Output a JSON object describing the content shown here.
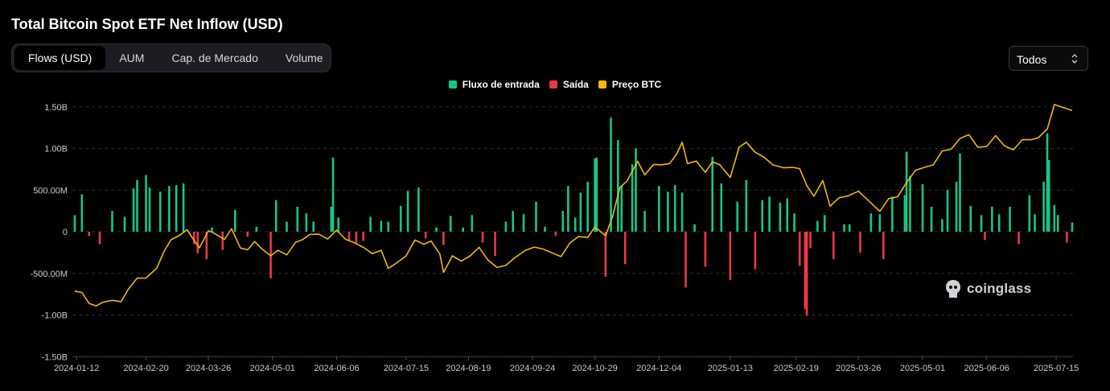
{
  "title": "Total Bitcoin Spot ETF Net Inflow (USD)",
  "tabs": [
    {
      "label": "Flows (USD)",
      "active": true
    },
    {
      "label": "AUM",
      "active": false
    },
    {
      "label": "Cap. de Mercado",
      "active": false
    },
    {
      "label": "Volume",
      "active": false
    }
  ],
  "range_select": {
    "value": "Todos"
  },
  "watermark": "coinglass",
  "colors": {
    "inflow": "#16c784",
    "outflow": "#ea3943",
    "price": "#f0b90b",
    "background": "#000000",
    "grid": "#2a2d33"
  },
  "chart_data": {
    "type": "bar",
    "legend": [
      {
        "name": "Fluxo de entrada",
        "color": "#16c784"
      },
      {
        "name": "Saída",
        "color": "#ea3943"
      },
      {
        "name": "Preço BTC",
        "color": "#f0b90b"
      }
    ],
    "legend_position": "top-center",
    "grid": true,
    "x_tick_labels": [
      "2024-01-12",
      "2024-02-20",
      "2024-03-26",
      "2024-05-01",
      "2024-06-06",
      "2024-07-15",
      "2024-08-19",
      "2024-09-24",
      "2024-10-29",
      "2024-12-04",
      "2025-01-13",
      "2025-02-19",
      "2025-03-26",
      "2025-05-01",
      "2025-06-06",
      "2025-07-15"
    ],
    "y_tick_labels": [
      "1.50B",
      "1.00B",
      "500.00M",
      "0",
      "-500.00M",
      "-1.00B",
      "-1.50B"
    ],
    "ylim": [
      -1.5,
      1.5
    ],
    "y_unit": "B USD",
    "x_range": [
      "2024-01-11",
      "2025-07-24"
    ],
    "series": [
      {
        "name": "Fluxo de entrada / Saída",
        "kind": "bar",
        "x": [
          "2024-01-11",
          "2024-01-15",
          "2024-01-19",
          "2024-01-25",
          "2024-02-01",
          "2024-02-08",
          "2024-02-13",
          "2024-02-15",
          "2024-02-20",
          "2024-02-22",
          "2024-02-28",
          "2024-03-04",
          "2024-03-08",
          "2024-03-12",
          "2024-03-18",
          "2024-03-20",
          "2024-03-25",
          "2024-03-28",
          "2024-04-03",
          "2024-04-10",
          "2024-04-17",
          "2024-04-22",
          "2024-04-30",
          "2024-05-03",
          "2024-05-09",
          "2024-05-15",
          "2024-05-20",
          "2024-05-24",
          "2024-06-03",
          "2024-06-04",
          "2024-06-07",
          "2024-06-13",
          "2024-06-17",
          "2024-06-21",
          "2024-06-25",
          "2024-07-01",
          "2024-07-05",
          "2024-07-12",
          "2024-07-16",
          "2024-07-22",
          "2024-07-26",
          "2024-08-01",
          "2024-08-05",
          "2024-08-09",
          "2024-08-16",
          "2024-08-21",
          "2024-08-27",
          "2024-09-03",
          "2024-09-09",
          "2024-09-13",
          "2024-09-19",
          "2024-09-26",
          "2024-10-01",
          "2024-10-07",
          "2024-10-11",
          "2024-10-14",
          "2024-10-18",
          "2024-10-21",
          "2024-10-25",
          "2024-10-29",
          "2024-10-30",
          "2024-11-04",
          "2024-11-07",
          "2024-11-11",
          "2024-11-13",
          "2024-11-15",
          "2024-11-19",
          "2024-11-21",
          "2024-11-26",
          "2024-12-04",
          "2024-12-09",
          "2024-12-13",
          "2024-12-17",
          "2024-12-19",
          "2024-12-24",
          "2024-12-30",
          "2025-01-03",
          "2025-01-08",
          "2025-01-13",
          "2025-01-17",
          "2025-01-22",
          "2025-01-27",
          "2025-01-31",
          "2025-02-04",
          "2025-02-10",
          "2025-02-14",
          "2025-02-18",
          "2025-02-21",
          "2025-02-24",
          "2025-02-25",
          "2025-02-27",
          "2025-03-03",
          "2025-03-07",
          "2025-03-12",
          "2025-03-18",
          "2025-03-21",
          "2025-03-27",
          "2025-04-02",
          "2025-04-07",
          "2025-04-09",
          "2025-04-14",
          "2025-04-21",
          "2025-04-22",
          "2025-04-24",
          "2025-05-01",
          "2025-05-06",
          "2025-05-12",
          "2025-05-15",
          "2025-05-20",
          "2025-05-22",
          "2025-05-28",
          "2025-06-03",
          "2025-06-05",
          "2025-06-09",
          "2025-06-13",
          "2025-06-19",
          "2025-06-24",
          "2025-06-30",
          "2025-07-03",
          "2025-07-08",
          "2025-07-10",
          "2025-07-11",
          "2025-07-14",
          "2025-07-16",
          "2025-07-21",
          "2025-07-24"
        ],
        "values": [
          0.2,
          0.45,
          -0.05,
          -0.15,
          0.25,
          0.18,
          0.52,
          0.62,
          0.68,
          0.53,
          0.48,
          0.55,
          0.56,
          0.58,
          -0.15,
          -0.26,
          -0.33,
          0.05,
          -0.22,
          0.26,
          -0.06,
          0.06,
          -0.56,
          0.38,
          0.12,
          0.3,
          0.22,
          0.12,
          0.3,
          0.89,
          0.17,
          -0.1,
          -0.15,
          -0.11,
          0.18,
          0.13,
          0.12,
          0.31,
          0.49,
          0.53,
          -0.08,
          0.05,
          -0.16,
          0.19,
          0.05,
          0.2,
          -0.13,
          -0.29,
          0.12,
          0.25,
          0.21,
          0.36,
          0.06,
          -0.05,
          0.25,
          0.55,
          0.17,
          0.47,
          0.6,
          0.88,
          0.89,
          -0.54,
          1.37,
          1.1,
          0.55,
          -0.39,
          0.81,
          1.0,
          0.25,
          0.55,
          0.48,
          0.56,
          0.47,
          -0.67,
          0.09,
          -0.42,
          0.9,
          0.58,
          -0.58,
          0.36,
          0.62,
          -0.45,
          0.38,
          0.42,
          0.35,
          0.4,
          0.22,
          -0.41,
          -0.93,
          -1.01,
          -0.2,
          0.13,
          0.2,
          -0.33,
          0.09,
          0.09,
          -0.25,
          0.22,
          0.21,
          -0.33,
          0.42,
          0.44,
          0.96,
          0.67,
          0.57,
          0.3,
          0.15,
          0.5,
          0.6,
          0.94,
          0.31,
          0.2,
          -0.1,
          0.3,
          0.21,
          0.3,
          -0.15,
          0.44,
          0.21,
          0.6,
          1.18,
          0.86,
          0.32,
          0.2,
          -0.13,
          0.11
        ]
      },
      {
        "name": "Preço BTC",
        "kind": "line",
        "x": [
          "2024-01-11",
          "2024-01-15",
          "2024-01-19",
          "2024-01-23",
          "2024-01-27",
          "2024-02-01",
          "2024-02-06",
          "2024-02-10",
          "2024-02-15",
          "2024-02-20",
          "2024-02-26",
          "2024-03-01",
          "2024-03-05",
          "2024-03-10",
          "2024-03-14",
          "2024-03-18",
          "2024-03-21",
          "2024-03-26",
          "2024-03-29",
          "2024-04-04",
          "2024-04-08",
          "2024-04-13",
          "2024-04-17",
          "2024-04-21",
          "2024-04-25",
          "2024-04-30",
          "2024-05-04",
          "2024-05-09",
          "2024-05-14",
          "2024-05-18",
          "2024-05-22",
          "2024-05-27",
          "2024-06-01",
          "2024-06-06",
          "2024-06-11",
          "2024-06-16",
          "2024-06-21",
          "2024-06-26",
          "2024-07-01",
          "2024-07-05",
          "2024-07-10",
          "2024-07-15",
          "2024-07-20",
          "2024-07-25",
          "2024-07-29",
          "2024-08-03",
          "2024-08-05",
          "2024-08-10",
          "2024-08-15",
          "2024-08-20",
          "2024-08-25",
          "2024-08-30",
          "2024-09-04",
          "2024-09-09",
          "2024-09-14",
          "2024-09-20",
          "2024-09-25",
          "2024-09-30",
          "2024-10-05",
          "2024-10-10",
          "2024-10-15",
          "2024-10-20",
          "2024-10-25",
          "2024-10-29",
          "2024-11-04",
          "2024-11-08",
          "2024-11-12",
          "2024-11-16",
          "2024-11-22",
          "2024-11-26",
          "2024-12-01",
          "2024-12-05",
          "2024-12-10",
          "2024-12-14",
          "2024-12-17",
          "2024-12-20",
          "2024-12-25",
          "2024-12-30",
          "2025-01-03",
          "2025-01-07",
          "2025-01-13",
          "2025-01-18",
          "2025-01-22",
          "2025-01-27",
          "2025-02-01",
          "2025-02-06",
          "2025-02-12",
          "2025-02-17",
          "2025-02-21",
          "2025-02-25",
          "2025-03-01",
          "2025-03-06",
          "2025-03-10",
          "2025-03-15",
          "2025-03-20",
          "2025-03-26",
          "2025-04-01",
          "2025-04-07",
          "2025-04-12",
          "2025-04-17",
          "2025-04-22",
          "2025-04-27",
          "2025-05-02",
          "2025-05-07",
          "2025-05-12",
          "2025-05-17",
          "2025-05-22",
          "2025-05-27",
          "2025-06-01",
          "2025-06-06",
          "2025-06-11",
          "2025-06-16",
          "2025-06-21",
          "2025-06-26",
          "2025-07-01",
          "2025-07-05",
          "2025-07-10",
          "2025-07-14",
          "2025-07-18",
          "2025-07-24"
        ],
        "values": [
          46800,
          46200,
          41900,
          40900,
          42400,
          43100,
          42600,
          47500,
          51900,
          52000,
          55900,
          62400,
          67200,
          69000,
          71200,
          66900,
          64000,
          70800,
          69900,
          67300,
          71600,
          63900,
          63200,
          66500,
          63600,
          60800,
          63000,
          61200,
          66200,
          67300,
          69300,
          69400,
          67500,
          71000,
          67400,
          66000,
          64200,
          61700,
          63000,
          55800,
          58100,
          60800,
          67100,
          65400,
          66700,
          61500,
          54200,
          60800,
          58700,
          60800,
          64200,
          59100,
          56200,
          57000,
          60000,
          63000,
          64300,
          63500,
          62000,
          60500,
          66000,
          68500,
          68100,
          72300,
          68800,
          76500,
          88000,
          90500,
          98400,
          93000,
          97200,
          97000,
          97500,
          101400,
          106000,
          97500,
          98500,
          94000,
          98200,
          97100,
          92000,
          104000,
          106000,
          102000,
          100000,
          97000,
          95800,
          96000,
          95500,
          88700,
          84500,
          90800,
          80500,
          83900,
          84600,
          86500,
          82500,
          78500,
          83600,
          84300,
          90000,
          94800,
          96000,
          97000,
          102500,
          103200,
          107500,
          109000,
          104000,
          104300,
          108600,
          104500,
          103000,
          107000,
          107000,
          107800,
          111200,
          121000,
          120000,
          118600
        ]
      }
    ]
  }
}
